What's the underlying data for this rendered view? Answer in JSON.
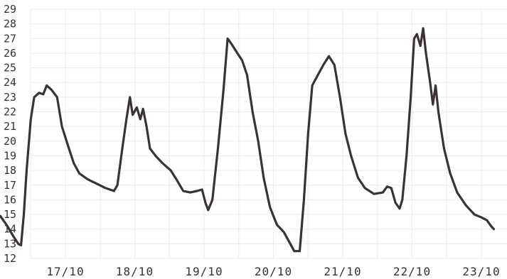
{
  "chart_data": {
    "type": "line",
    "title": "",
    "xlabel": "",
    "ylabel": "",
    "ylim": [
      12,
      29
    ],
    "xlim": [
      16.0,
      23.4
    ],
    "grid": true,
    "y_ticks": [
      "12",
      "13",
      "14",
      "15",
      "16",
      "17",
      "18",
      "19",
      "20",
      "21",
      "22",
      "23",
      "24",
      "25",
      "26",
      "27",
      "28",
      "29"
    ],
    "x_ticks": [
      {
        "label": "17/10",
        "x": 17
      },
      {
        "label": "18/10",
        "x": 18
      },
      {
        "label": "19/10",
        "x": 19
      },
      {
        "label": "20/10",
        "x": 20
      },
      {
        "label": "21/10",
        "x": 21
      },
      {
        "label": "22/10",
        "x": 22
      },
      {
        "label": "23/10",
        "x": 23
      }
    ],
    "series": [
      {
        "name": "",
        "color": "#3a3233",
        "points": [
          [
            16.0,
            14.9
          ],
          [
            16.06,
            14.9
          ],
          [
            16.15,
            14.3
          ],
          [
            16.25,
            13.5
          ],
          [
            16.32,
            13.0
          ],
          [
            16.36,
            12.9
          ],
          [
            16.4,
            15.0
          ],
          [
            16.44,
            18.0
          ],
          [
            16.5,
            21.5
          ],
          [
            16.55,
            23.0
          ],
          [
            16.62,
            23.3
          ],
          [
            16.68,
            23.2
          ],
          [
            16.73,
            23.8
          ],
          [
            16.8,
            23.5
          ],
          [
            16.88,
            23.0
          ],
          [
            16.95,
            21.0
          ],
          [
            17.05,
            19.5
          ],
          [
            17.12,
            18.5
          ],
          [
            17.2,
            17.8
          ],
          [
            17.32,
            17.4
          ],
          [
            17.45,
            17.1
          ],
          [
            17.58,
            16.8
          ],
          [
            17.7,
            16.6
          ],
          [
            17.75,
            17.0
          ],
          [
            17.82,
            19.5
          ],
          [
            17.88,
            21.5
          ],
          [
            17.93,
            23.0
          ],
          [
            17.97,
            21.8
          ],
          [
            18.03,
            22.3
          ],
          [
            18.08,
            21.5
          ],
          [
            18.12,
            22.2
          ],
          [
            18.17,
            21.0
          ],
          [
            18.22,
            19.5
          ],
          [
            18.3,
            19.0
          ],
          [
            18.4,
            18.5
          ],
          [
            18.52,
            18.0
          ],
          [
            18.6,
            17.4
          ],
          [
            18.7,
            16.6
          ],
          [
            18.8,
            16.5
          ],
          [
            18.9,
            16.6
          ],
          [
            18.97,
            16.7
          ],
          [
            19.02,
            15.8
          ],
          [
            19.06,
            15.3
          ],
          [
            19.12,
            16.0
          ],
          [
            19.2,
            19.5
          ],
          [
            19.28,
            23.5
          ],
          [
            19.34,
            27.0
          ],
          [
            19.4,
            26.6
          ],
          [
            19.48,
            26.0
          ],
          [
            19.55,
            25.5
          ],
          [
            19.62,
            24.5
          ],
          [
            19.7,
            22.0
          ],
          [
            19.78,
            20.0
          ],
          [
            19.86,
            17.5
          ],
          [
            19.95,
            15.5
          ],
          [
            20.05,
            14.3
          ],
          [
            20.15,
            13.8
          ],
          [
            20.22,
            13.2
          ],
          [
            20.3,
            12.5
          ],
          [
            20.38,
            12.5
          ],
          [
            20.44,
            16.0
          ],
          [
            20.5,
            20.5
          ],
          [
            20.56,
            23.8
          ],
          [
            20.64,
            24.5
          ],
          [
            20.72,
            25.2
          ],
          [
            20.8,
            25.8
          ],
          [
            20.88,
            25.2
          ],
          [
            20.96,
            23.0
          ],
          [
            21.04,
            20.5
          ],
          [
            21.12,
            19.0
          ],
          [
            21.22,
            17.5
          ],
          [
            21.32,
            16.8
          ],
          [
            21.45,
            16.4
          ],
          [
            21.58,
            16.5
          ],
          [
            21.64,
            16.9
          ],
          [
            21.7,
            16.8
          ],
          [
            21.76,
            15.8
          ],
          [
            21.82,
            15.4
          ],
          [
            21.86,
            16.0
          ],
          [
            21.92,
            19.0
          ],
          [
            21.98,
            23.0
          ],
          [
            22.03,
            27.0
          ],
          [
            22.07,
            27.3
          ],
          [
            22.12,
            26.5
          ],
          [
            22.16,
            27.7
          ],
          [
            22.2,
            26.0
          ],
          [
            22.26,
            24.0
          ],
          [
            22.3,
            22.5
          ],
          [
            22.34,
            23.8
          ],
          [
            22.38,
            22.0
          ],
          [
            22.46,
            19.5
          ],
          [
            22.55,
            17.8
          ],
          [
            22.65,
            16.5
          ],
          [
            22.78,
            15.6
          ],
          [
            22.9,
            15.0
          ],
          [
            23.0,
            14.8
          ],
          [
            23.08,
            14.6
          ],
          [
            23.14,
            14.2
          ],
          [
            23.18,
            14.0
          ]
        ]
      }
    ]
  }
}
